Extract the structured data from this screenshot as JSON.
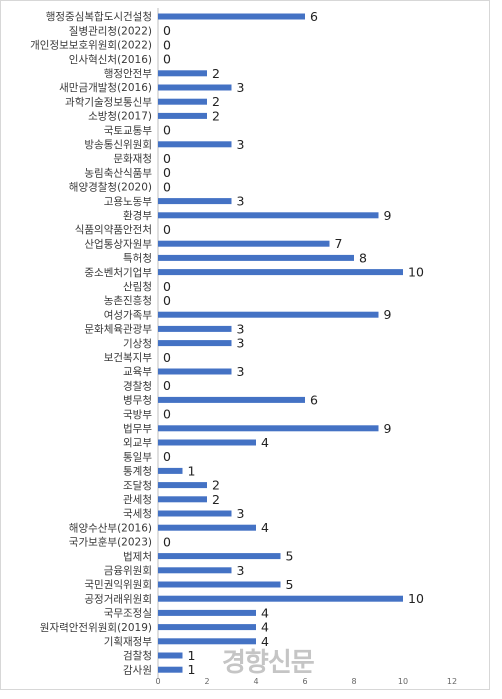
{
  "chart_data": {
    "type": "bar",
    "orientation": "horizontal",
    "categories": [
      "행정중심복합도시건설청",
      "질병관리청(2022)",
      "개인정보보호위원회(2022)",
      "인사혁신처(2016)",
      "행정안전부",
      "새만금개발청(2016)",
      "과학기술정보통신부",
      "소방청(2017)",
      "국토교통부",
      "방송통신위원회",
      "문화재청",
      "농림축산식품부",
      "해양경찰청(2020)",
      "고용노동부",
      "환경부",
      "식품의약품안전처",
      "산업통상자원부",
      "특허청",
      "중소벤처기업부",
      "산림청",
      "농촌진흥청",
      "여성가족부",
      "문화체육관광부",
      "기상청",
      "보건복지부",
      "교육부",
      "경찰청",
      "병무청",
      "국방부",
      "법무부",
      "외교부",
      "통일부",
      "통계청",
      "조달청",
      "관세청",
      "국세청",
      "해양수산부(2016)",
      "국가보훈부(2023)",
      "법제처",
      "금융위원회",
      "국민권익위원회",
      "공정거래위원회",
      "국무조정실",
      "원자력안전위원회(2019)",
      "기획재정부",
      "검찰청",
      "감사원"
    ],
    "values": [
      6,
      0,
      0,
      0,
      2,
      3,
      2,
      2,
      0,
      3,
      0,
      0,
      0,
      3,
      9,
      0,
      7,
      8,
      10,
      0,
      0,
      9,
      3,
      3,
      0,
      3,
      0,
      6,
      0,
      9,
      4,
      0,
      1,
      2,
      2,
      3,
      4,
      0,
      5,
      3,
      5,
      10,
      4,
      4,
      4,
      1,
      1
    ],
    "xticks": [
      "0",
      "2",
      "4",
      "6",
      "8",
      "10",
      "12"
    ],
    "xlim": [
      0,
      12
    ],
    "grid": false,
    "legend": "none",
    "bar_color": "#4472c4"
  },
  "watermark": "경향신문"
}
